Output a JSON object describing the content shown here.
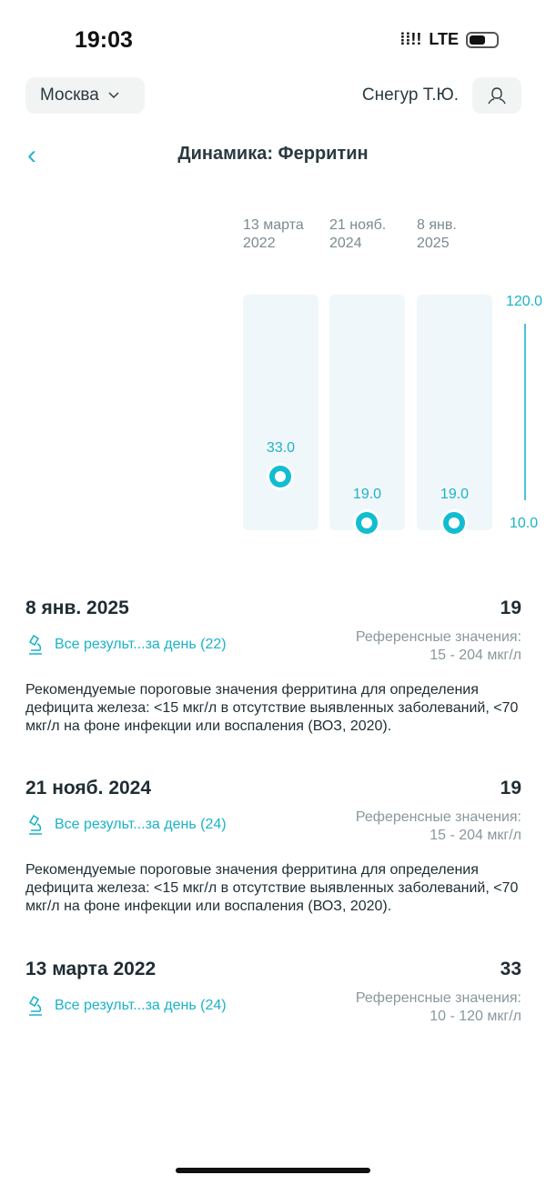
{
  "status_bar": {
    "time": "19:03",
    "network": "LTE"
  },
  "header": {
    "city": "Москва",
    "user": "Снегур Т.Ю."
  },
  "page": {
    "title": "Динамика: Ферритин"
  },
  "chart_data": {
    "type": "scatter",
    "categories": [
      [
        "13 марта",
        "2022"
      ],
      [
        "21 нояб.",
        "2024"
      ],
      [
        "8 янв.",
        "2025"
      ]
    ],
    "values": [
      33.0,
      19.0,
      19.0
    ],
    "value_labels": [
      "33.0",
      "19.0",
      "19.0"
    ],
    "y_axis": {
      "max_label": "120.0",
      "min_label": "10.0",
      "range": [
        10,
        120
      ]
    },
    "color": "#13bdd1"
  },
  "entries": [
    {
      "date": "8 янв. 2025",
      "value": "19",
      "link": "Все результ...за день (22)",
      "ref_label": "Референсные значения:",
      "ref_range": "15 - 204 мкг/л",
      "note": "Рекомендуемые пороговые значения ферритина для определения дефицита железа: <15 мкг/л в отсутствие выявленных заболеваний, <70 мкг/л на фоне инфекции или воспаления (ВОЗ, 2020)."
    },
    {
      "date": "21 нояб. 2024",
      "value": "19",
      "link": "Все результ...за день (24)",
      "ref_label": "Референсные значения:",
      "ref_range": "15 - 204 мкг/л",
      "note": "Рекомендуемые пороговые значения ферритина для определения дефицита железа: <15 мкг/л в отсутствие выявленных заболеваний, <70 мкг/л на фоне инфекции или воспаления (ВОЗ, 2020)."
    },
    {
      "date": "13 марта 2022",
      "value": "33",
      "link": "Все результ...за день (24)",
      "ref_label": "Референсные значения:",
      "ref_range": "10 - 120 мкг/л"
    }
  ]
}
